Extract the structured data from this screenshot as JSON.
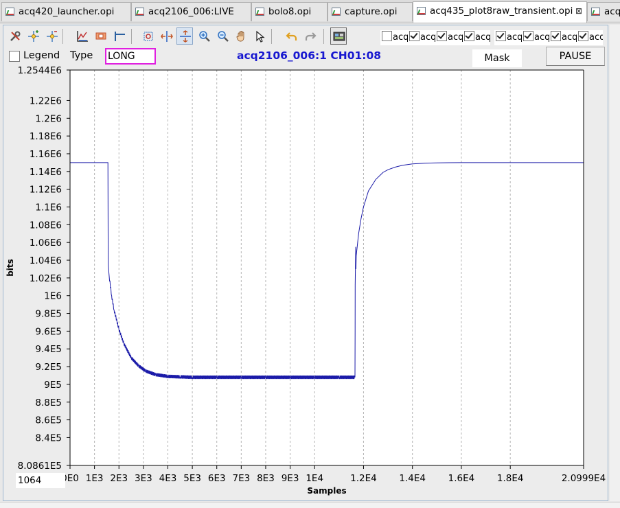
{
  "tabs": [
    {
      "label": "acq420_launcher.opi",
      "active": false
    },
    {
      "label": "acq2106_006:LIVE",
      "active": false
    },
    {
      "label": "bolo8.opi",
      "active": false
    },
    {
      "label": "capture.opi",
      "active": false
    },
    {
      "label": "acq435_plot8raw_transient.opi",
      "active": true
    },
    {
      "label": "acq",
      "active": false
    }
  ],
  "close_glyph": "⊠",
  "toolbar": {
    "icons": [
      "configure-icon",
      "add-annotation-icon",
      "remove-annotation-icon",
      "autoscale-icon",
      "rubberband-zoom-icon",
      "horizontal-axis-icon",
      "zoom-box-icon",
      "horizontal-zoom-icon",
      "vertical-zoom-icon",
      "zoom-in-icon",
      "zoom-out-icon",
      "pan-icon",
      "pointer-icon",
      "undo-icon",
      "redo-icon",
      "snapshot-icon"
    ],
    "selected": "vertical-zoom-icon"
  },
  "channels": [
    {
      "label": "acq",
      "checked": false
    },
    {
      "label": "acq",
      "checked": true
    },
    {
      "label": "acq",
      "checked": true
    },
    {
      "label": "acq",
      "checked": true
    },
    {
      "label": "acq",
      "checked": true
    },
    {
      "label": "acq",
      "checked": true
    },
    {
      "label": "acq",
      "checked": true
    },
    {
      "label": "acq",
      "checked": true
    }
  ],
  "legend_label": "Legend",
  "legend_checked": false,
  "type_label": "Type",
  "type_value": "LONG",
  "plot_title": "acq2106_006:1 CH01:08",
  "mask_label": "Mask",
  "pause_label": "PAUSE",
  "x_input_value": "1064",
  "colors": {
    "trace": "#1a1aa8",
    "title": "#1818d0",
    "type_border": "#e020e0",
    "grid": "#b4b4b4"
  },
  "chart_data": {
    "type": "line",
    "title": "acq2106_006:1 CH01:08",
    "xlabel": "Samples",
    "ylabel": "bits",
    "xlim": [
      0,
      20999
    ],
    "ylim": [
      808610,
      1254400
    ],
    "x_ticks": [
      "0E0",
      "1E3",
      "2E3",
      "3E3",
      "4E3",
      "5E3",
      "6E3",
      "7E3",
      "8E3",
      "9E3",
      "1E4",
      "1.2E4",
      "1.4E4",
      "1.6E4",
      "1.8E4",
      "2.0999E4"
    ],
    "x_tick_values": [
      0,
      1000,
      2000,
      3000,
      4000,
      5000,
      6000,
      7000,
      8000,
      9000,
      10000,
      12000,
      14000,
      16000,
      18000,
      20999
    ],
    "y_ticks": [
      "1.2544E6",
      "1.22E6",
      "1.2E6",
      "1.18E6",
      "1.16E6",
      "1.14E6",
      "1.12E6",
      "1.1E6",
      "1.08E6",
      "1.06E6",
      "1.04E6",
      "1.02E6",
      "1E6",
      "9.8E5",
      "9.6E5",
      "9.4E5",
      "9.2E5",
      "9E5",
      "8.8E5",
      "8.6E5",
      "8.4E5",
      "8.0861E5"
    ],
    "y_tick_values": [
      1254400,
      1220000,
      1200000,
      1180000,
      1160000,
      1140000,
      1120000,
      1100000,
      1080000,
      1060000,
      1040000,
      1020000,
      1000000,
      980000,
      960000,
      940000,
      920000,
      900000,
      880000,
      860000,
      840000,
      808610
    ],
    "grid_x": true,
    "grid_y": false,
    "series": [
      {
        "x": [
          0,
          1530,
          1550,
          1560,
          1600,
          1700,
          1800,
          2000,
          2200,
          2500,
          2800,
          3100,
          3500,
          4000,
          4500,
          5000,
          6000,
          7000,
          8000,
          9000,
          10000,
          11000,
          11650,
          11660,
          11680,
          11690,
          11700,
          11750,
          11800,
          11900,
          12000,
          12200,
          12500,
          12800,
          13000,
          13300,
          13600,
          14000,
          14500,
          15000,
          15500,
          16000,
          17000,
          18000,
          19000,
          20000,
          20999
        ],
        "y": [
          1150000,
          1150000,
          1150000,
          1035000,
          1022000,
          1000000,
          984000,
          962000,
          946000,
          930000,
          921000,
          915000,
          911000,
          909000,
          908500,
          908000,
          908000,
          908000,
          908000,
          908000,
          908000,
          908000,
          908000,
          1012000,
          1055000,
          1030000,
          1045000,
          1057000,
          1070000,
          1087000,
          1100000,
          1118000,
          1131000,
          1139000,
          1142000,
          1145000,
          1147000,
          1148500,
          1149300,
          1149700,
          1149900,
          1150000,
          1150000,
          1150000,
          1150000,
          1150000,
          1150000
        ]
      }
    ]
  }
}
